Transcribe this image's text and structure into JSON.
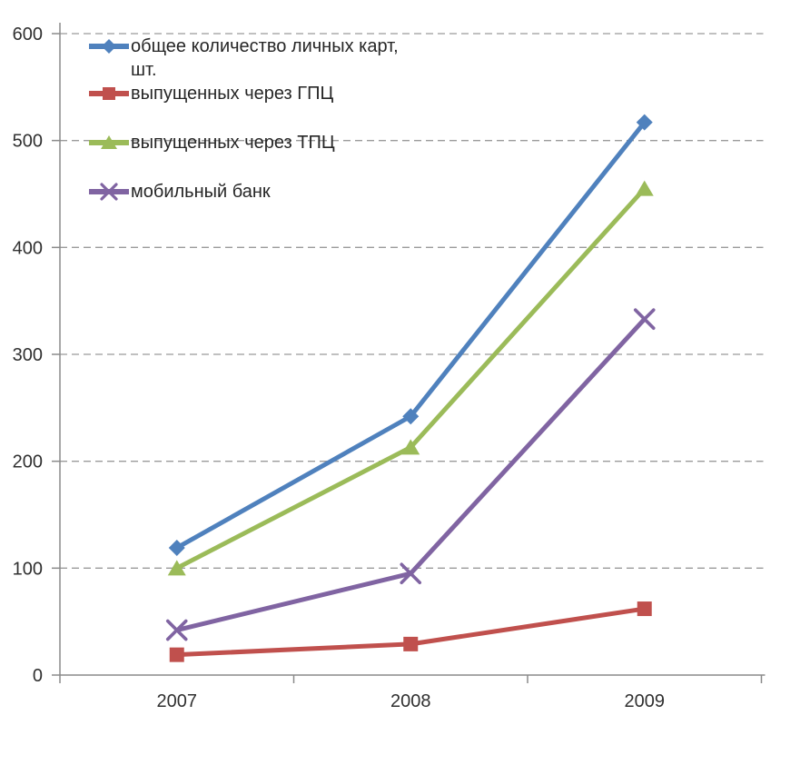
{
  "chart_data": {
    "type": "line",
    "title": "",
    "categories": [
      "2007",
      "2008",
      "2009"
    ],
    "series": [
      {
        "name": "общее количество личных карт, шт.",
        "values": [
          119,
          242,
          517
        ],
        "color": "#4F81BD",
        "marker": "diamond"
      },
      {
        "name": "выпущенных через ГПЦ",
        "values": [
          19,
          29,
          62
        ],
        "color": "#C0504D",
        "marker": "square"
      },
      {
        "name": "выпущенных через ТПЦ",
        "values": [
          100,
          213,
          455
        ],
        "color": "#9BBB59",
        "marker": "triangle"
      },
      {
        "name": "мобильный банк",
        "values": [
          42,
          95,
          333
        ],
        "color": "#8064A2",
        "marker": "x"
      }
    ],
    "xlabel": "",
    "ylabel": "",
    "ylim": [
      0,
      600
    ],
    "y_ticks": [
      0,
      100,
      200,
      300,
      400,
      500,
      600
    ],
    "grid": true,
    "gridline_style": "dashed",
    "legend_position": "top-left"
  }
}
